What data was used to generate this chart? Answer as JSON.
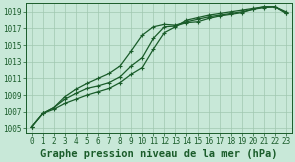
{
  "title": "Graphe pression niveau de la mer (hPa)",
  "bg_color": "#c8e8d8",
  "grid_color": "#a0c8b0",
  "line_color": "#1a5c2a",
  "xlim": [
    -0.5,
    23.5
  ],
  "ylim": [
    1004.5,
    1020.0
  ],
  "yticks": [
    1005,
    1007,
    1009,
    1011,
    1013,
    1015,
    1017,
    1019
  ],
  "xticks": [
    0,
    1,
    2,
    3,
    4,
    5,
    6,
    7,
    8,
    9,
    10,
    11,
    12,
    13,
    14,
    15,
    16,
    17,
    18,
    19,
    20,
    21,
    22,
    23
  ],
  "line1_x": [
    0,
    1,
    2,
    3,
    4,
    5,
    6,
    7,
    8,
    9,
    10,
    11,
    12,
    13,
    14,
    15,
    16,
    17,
    18,
    19,
    20,
    21,
    22,
    23
  ],
  "line1_y": [
    1005.2,
    1006.8,
    1007.5,
    1008.8,
    1009.7,
    1010.4,
    1011.0,
    1011.6,
    1012.5,
    1014.3,
    1016.2,
    1017.2,
    1017.5,
    1017.4,
    1017.8,
    1018.1,
    1018.4,
    1018.6,
    1018.8,
    1019.0,
    1019.3,
    1019.6,
    1019.6,
    1019.0
  ],
  "line2_x": [
    0,
    1,
    2,
    3,
    4,
    5,
    6,
    7,
    8,
    9,
    10,
    11,
    12,
    13,
    14,
    15,
    16,
    17,
    18,
    19,
    20,
    21,
    22,
    23
  ],
  "line2_y": [
    1005.2,
    1006.8,
    1007.5,
    1008.5,
    1009.2,
    1009.8,
    1010.1,
    1010.5,
    1011.2,
    1012.5,
    1013.5,
    1015.8,
    1017.2,
    1017.3,
    1017.7,
    1017.8,
    1018.2,
    1018.5,
    1018.7,
    1018.9,
    1019.3,
    1019.5,
    1019.6,
    1018.8
  ],
  "line3_x": [
    0,
    1,
    2,
    3,
    4,
    5,
    6,
    7,
    8,
    9,
    10,
    11,
    12,
    13,
    14,
    15,
    16,
    17,
    18,
    19,
    20,
    21,
    22,
    23
  ],
  "line3_y": [
    1005.2,
    1006.8,
    1007.3,
    1008.0,
    1008.5,
    1009.0,
    1009.4,
    1009.8,
    1010.5,
    1011.5,
    1012.3,
    1014.5,
    1016.5,
    1017.2,
    1018.0,
    1018.3,
    1018.6,
    1018.8,
    1019.0,
    1019.2,
    1019.4,
    1019.6,
    1019.6,
    1018.9
  ],
  "marker": "+",
  "markersize": 3.5,
  "linewidth": 0.9,
  "title_fontsize": 7.5,
  "tick_fontsize": 5.5
}
